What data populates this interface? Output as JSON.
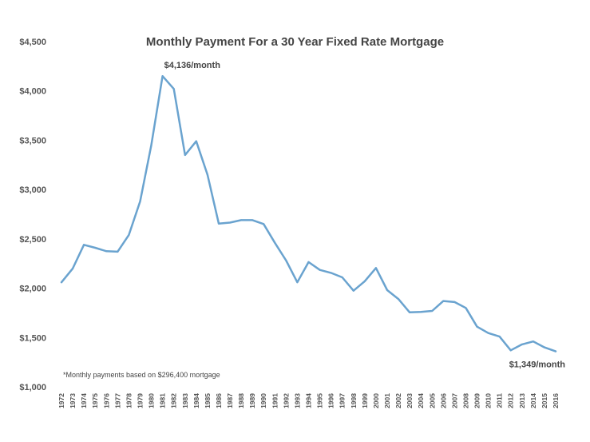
{
  "chart_data": {
    "type": "line",
    "title": "Monthly Payment For a 30 Year Fixed Rate Mortgage",
    "xlabel": "",
    "ylabel": "",
    "ylim": [
      1000,
      4500
    ],
    "yticks": [
      1000,
      1500,
      2000,
      2500,
      3000,
      3500,
      4000,
      4500
    ],
    "ytick_labels": [
      "$1,000",
      "$1,500",
      "$2,000",
      "$2,500",
      "$3,000",
      "$3,500",
      "$4,000",
      "$4,500"
    ],
    "grid": false,
    "line_color": "#6aa3cf",
    "x": [
      1972,
      1973,
      1974,
      1975,
      1976,
      1977,
      1978,
      1979,
      1980,
      1981,
      1982,
      1983,
      1984,
      1985,
      1986,
      1987,
      1988,
      1989,
      1990,
      1991,
      1992,
      1993,
      1994,
      1995,
      1996,
      1997,
      1998,
      1999,
      2000,
      2001,
      2002,
      2003,
      2004,
      2005,
      2006,
      2007,
      2008,
      2009,
      2010,
      2011,
      2012,
      2013,
      2014,
      2015,
      2016
    ],
    "x_labels": [
      "1972",
      "1973",
      "1974",
      "1975",
      "1976",
      "1977",
      "1978",
      "1979",
      "1980",
      "1981",
      "1982",
      "1983",
      "1984",
      "1985",
      "1986",
      "1987",
      "1988",
      "1989",
      "1990",
      "1991",
      "1992",
      "1993",
      "1994",
      "1995",
      "1996",
      "1997",
      "1998",
      "1999",
      "2000",
      "2001",
      "2002",
      "2003",
      "2004",
      "2005",
      "2006",
      "2007",
      "2008",
      "2009",
      "2010",
      "2011",
      "2012",
      "2013",
      "2014",
      "2015",
      "2016"
    ],
    "series": [
      {
        "name": "Monthly payment",
        "values": [
          2060,
          2200,
          2440,
          2410,
          2375,
          2370,
          2540,
          2880,
          3450,
          4150,
          4020,
          3350,
          3490,
          3150,
          2655,
          2665,
          2690,
          2690,
          2650,
          2460,
          2280,
          2060,
          2265,
          2185,
          2155,
          2110,
          1975,
          2070,
          2205,
          1980,
          1890,
          1755,
          1760,
          1770,
          1870,
          1860,
          1800,
          1610,
          1545,
          1510,
          1370,
          1430,
          1460,
          1400,
          1360
        ]
      }
    ],
    "annotations": [
      {
        "text": "$4,136/month",
        "x": 1981,
        "y": 4150
      },
      {
        "text": "$1,349/month",
        "x": 2016,
        "y": 1360
      }
    ],
    "footnote": "*Monthly payments based on $296,400 mortgage"
  }
}
